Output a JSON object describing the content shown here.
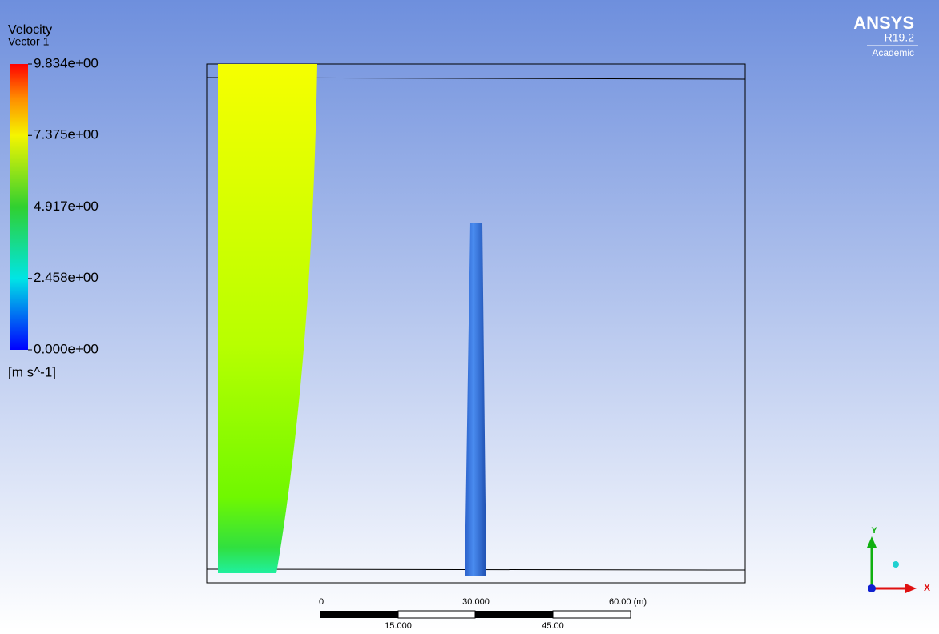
{
  "legend": {
    "title": "Velocity",
    "subtitle": "Vector 1",
    "ticks": [
      "9.834e+00",
      "7.375e+00",
      "4.917e+00",
      "2.458e+00",
      "0.000e+00"
    ],
    "unit": "[m s^-1]"
  },
  "logo": {
    "name": "ANSYS",
    "version": "R19.2",
    "edition": "Academic"
  },
  "scale_bar": {
    "top_labels": [
      "0",
      "30.000",
      "60.00 (m)"
    ],
    "bottom_labels": [
      "15.000",
      "45.00"
    ]
  },
  "triad": {
    "y": "Y",
    "x": "X"
  }
}
